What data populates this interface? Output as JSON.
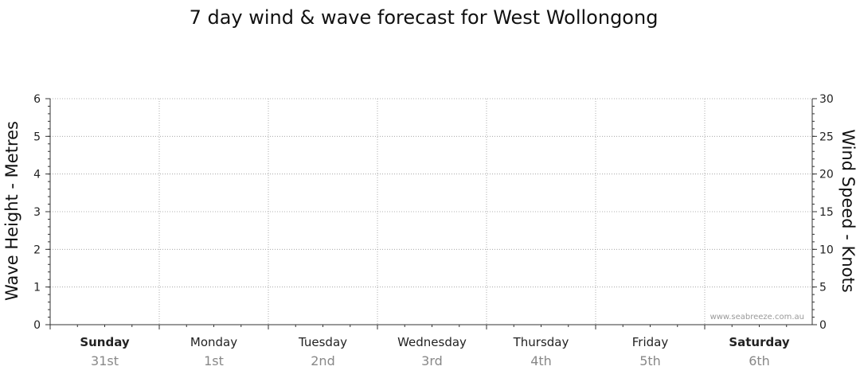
{
  "title": "7 day wind & wave forecast for West Wollongong",
  "watermark": "www.seabreeze.com.au",
  "chart_data": {
    "type": "line",
    "title": "7 day wind & wave forecast for West Wollongong",
    "ylabel_left": "Wave Height - Metres",
    "ylabel_right": "Wind Speed - Knots",
    "ylim_left": [
      0,
      6
    ],
    "ylim_right": [
      0,
      30
    ],
    "yticks_left": [
      "0",
      "1",
      "2",
      "3",
      "4",
      "5",
      "6"
    ],
    "yticks_right": [
      "0",
      "5",
      "10",
      "15",
      "20",
      "25",
      "30"
    ],
    "grid": true,
    "days": [
      {
        "name": "Sunday",
        "date": "31st",
        "bold": true
      },
      {
        "name": "Monday",
        "date": "1st",
        "bold": false
      },
      {
        "name": "Tuesday",
        "date": "2nd",
        "bold": false
      },
      {
        "name": "Wednesday",
        "date": "3rd",
        "bold": false
      },
      {
        "name": "Thursday",
        "date": "4th",
        "bold": false
      },
      {
        "name": "Friday",
        "date": "5th",
        "bold": false
      },
      {
        "name": "Saturday",
        "date": "6th",
        "bold": true
      }
    ],
    "series": []
  }
}
